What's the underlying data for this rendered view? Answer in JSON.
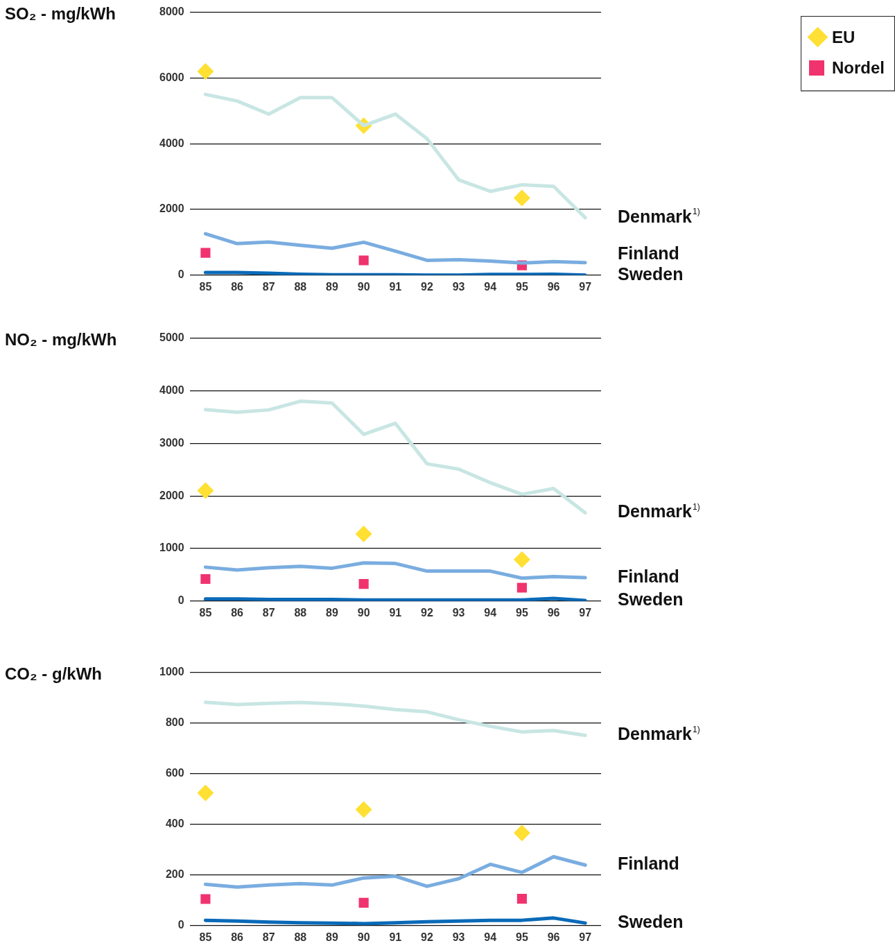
{
  "chart_data": [
    {
      "type": "line",
      "ylabel": "SO₂ - mg/kWh",
      "categories": [
        "85",
        "86",
        "87",
        "88",
        "89",
        "90",
        "91",
        "92",
        "93",
        "94",
        "95",
        "96",
        "97"
      ],
      "ylim": [
        0,
        8000
      ],
      "yticks": [
        0,
        2000,
        4000,
        6000,
        8000
      ],
      "grid": "y",
      "legend": "top right",
      "line_style": "solid",
      "series": [
        {
          "name": "Denmark$^{1)}$",
          "color": "#c8e6e3",
          "marker": "none",
          "values": [
            5500,
            5300,
            4900,
            5400,
            5400,
            4550,
            4900,
            4150,
            2900,
            2550,
            2750,
            2700,
            1750
          ]
        },
        {
          "name": "Finland",
          "color": "#7aade0",
          "marker": "none",
          "values": [
            1260,
            960,
            1010,
            910,
            820,
            1000,
            730,
            450,
            470,
            430,
            370,
            410,
            380
          ]
        },
        {
          "name": "Sweden",
          "color": "#0a6ab8",
          "marker": "none",
          "values": [
            80,
            80,
            60,
            30,
            10,
            10,
            10,
            0,
            0,
            20,
            20,
            30,
            0
          ]
        },
        {
          "name": "EU",
          "type": "scatter",
          "color": "#ffe033",
          "marker": "diamond",
          "x": [
            "85",
            "90",
            "95"
          ],
          "values": [
            6200,
            4550,
            2350
          ]
        },
        {
          "name": "Nordel",
          "type": "scatter",
          "color": "#f0336f",
          "marker": "square",
          "x": [
            "85",
            "90",
            "95"
          ],
          "values": [
            680,
            450,
            300
          ]
        }
      ]
    },
    {
      "type": "line",
      "ylabel": "NO₂ - mg/kWh",
      "categories": [
        "85",
        "86",
        "87",
        "88",
        "89",
        "90",
        "91",
        "92",
        "93",
        "94",
        "95",
        "96",
        "97"
      ],
      "ylim": [
        0,
        5000
      ],
      "yticks": [
        0,
        1000,
        2000,
        3000,
        4000,
        5000
      ],
      "grid": "y",
      "line_style": "solid",
      "series": [
        {
          "name": "Denmark$^{1)}$",
          "color": "#c8e6e3",
          "marker": "none",
          "values": [
            3640,
            3590,
            3635,
            3800,
            3765,
            3170,
            3380,
            2610,
            2510,
            2250,
            2030,
            2140,
            1680
          ]
        },
        {
          "name": "Finland",
          "color": "#7aade0",
          "marker": "none",
          "values": [
            645,
            590,
            635,
            660,
            625,
            725,
            715,
            570,
            570,
            570,
            435,
            465,
            445
          ]
        },
        {
          "name": "Sweden",
          "color": "#0a6ab8",
          "marker": "none",
          "values": [
            40,
            40,
            30,
            30,
            30,
            20,
            20,
            20,
            20,
            20,
            20,
            50,
            10
          ]
        },
        {
          "type": "scatter",
          "color": "#ffe033",
          "marker": "diamond",
          "x": [
            "85",
            "90",
            "95"
          ],
          "values": [
            2100,
            1275,
            790
          ]
        },
        {
          "type": "scatter",
          "color": "#f0336f",
          "marker": "square",
          "x": [
            "85",
            "90",
            "95"
          ],
          "values": [
            420,
            325,
            255
          ]
        }
      ]
    },
    {
      "type": "line",
      "ylabel": "CO₂ - g/kWh",
      "categories": [
        "85",
        "86",
        "87",
        "88",
        "89",
        "90",
        "91",
        "92",
        "93",
        "94",
        "95",
        "96",
        "97"
      ],
      "ylim": [
        0,
        1000
      ],
      "yticks": [
        0,
        200,
        400,
        600,
        800,
        1000
      ],
      "grid": "y",
      "line_style": "solid",
      "series": [
        {
          "name": "Denmark$^{1)}$",
          "color": "#c8e6e3",
          "marker": "none",
          "values": [
            882,
            873,
            878,
            881,
            876,
            867,
            853,
            844,
            813,
            787,
            765,
            770,
            751
          ]
        },
        {
          "name": "Finland",
          "color": "#7aade0",
          "marker": "none",
          "values": [
            163,
            152,
            160,
            166,
            160,
            188,
            195,
            155,
            185,
            242,
            210,
            272,
            239
          ]
        },
        {
          "name": "Sweden",
          "color": "#0a6ab8",
          "marker": "none",
          "values": [
            21,
            18,
            14,
            11,
            10,
            8,
            11,
            15,
            18,
            21,
            21,
            30,
            10
          ]
        },
        {
          "type": "scatter",
          "color": "#ffe033",
          "marker": "diamond",
          "x": [
            "85",
            "90",
            "95"
          ],
          "values": [
            524,
            458,
            366
          ]
        },
        {
          "type": "scatter",
          "color": "#f0336f",
          "marker": "square",
          "x": [
            "85",
            "90",
            "95"
          ],
          "values": [
            105,
            90,
            106
          ]
        }
      ]
    }
  ]
}
